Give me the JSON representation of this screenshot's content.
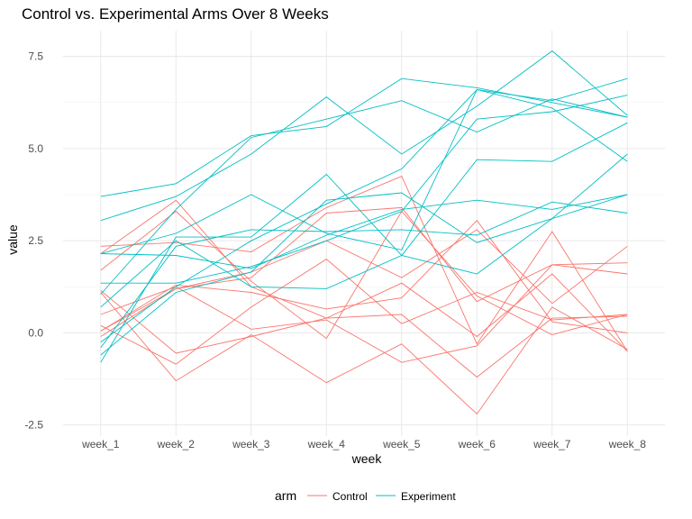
{
  "chart_data": {
    "type": "line",
    "title": "Control vs. Experimental Arms Over 8 Weeks",
    "xlabel": "week",
    "ylabel": "value",
    "categories": [
      "week_1",
      "week_2",
      "week_3",
      "week_4",
      "week_5",
      "week_6",
      "week_7",
      "week_8"
    ],
    "ylim": [
      -2.8,
      8.2
    ],
    "yticks": [
      -2.5,
      0.0,
      2.5,
      5.0,
      7.5
    ],
    "ytick_labels": [
      "-2.5",
      "0.0",
      "2.5",
      "5.0",
      "7.5"
    ],
    "grid": true,
    "legend": {
      "title": "arm",
      "position": "bottom",
      "entries": [
        {
          "name": "Control",
          "color": "#F8766D"
        },
        {
          "name": "Experiment",
          "color": "#00BFC4"
        }
      ]
    },
    "series": [
      {
        "name": "Control",
        "values": [
          0.2,
          -0.85,
          0.7,
          2.0,
          0.25,
          1.1,
          0.35,
          0.5
        ]
      },
      {
        "name": "Control",
        "values": [
          2.35,
          2.45,
          2.2,
          3.4,
          4.25,
          -0.3,
          2.75,
          -0.5
        ]
      },
      {
        "name": "Control",
        "values": [
          2.15,
          3.6,
          1.25,
          0.4,
          0.5,
          -1.2,
          0.4,
          0.45
        ]
      },
      {
        "name": "Control",
        "values": [
          1.1,
          -1.3,
          -0.05,
          -1.35,
          -0.3,
          -2.2,
          0.7,
          -0.45
        ]
      },
      {
        "name": "Control",
        "values": [
          1.7,
          3.3,
          1.4,
          -0.15,
          3.3,
          1.0,
          -0.05,
          0.5
        ]
      },
      {
        "name": "Control",
        "values": [
          1.15,
          -0.55,
          -0.1,
          0.4,
          1.35,
          -0.1,
          1.6,
          -0.5
        ]
      },
      {
        "name": "Control",
        "values": [
          -0.1,
          1.2,
          1.65,
          2.5,
          1.5,
          2.8,
          0.8,
          2.35
        ]
      },
      {
        "name": "Control",
        "values": [
          0.5,
          1.25,
          0.1,
          0.35,
          -0.8,
          -0.35,
          1.85,
          1.9
        ]
      },
      {
        "name": "Control",
        "values": [
          0.05,
          1.2,
          1.5,
          3.25,
          3.4,
          0.85,
          1.85,
          1.6
        ]
      },
      {
        "name": "Control",
        "values": [
          0.05,
          1.3,
          1.1,
          0.65,
          0.95,
          3.05,
          0.3,
          0.0
        ]
      },
      {
        "name": "Experiment",
        "values": [
          3.7,
          4.05,
          5.35,
          5.6,
          6.9,
          6.65,
          6.25,
          5.85
        ]
      },
      {
        "name": "Experiment",
        "values": [
          3.05,
          3.7,
          4.85,
          6.4,
          4.85,
          6.15,
          7.65,
          5.9
        ]
      },
      {
        "name": "Experiment",
        "values": [
          2.15,
          2.7,
          3.75,
          2.7,
          2.25,
          6.6,
          6.3,
          6.9
        ]
      },
      {
        "name": "Experiment",
        "values": [
          2.15,
          2.1,
          1.75,
          2.65,
          3.35,
          3.6,
          3.35,
          3.75
        ]
      },
      {
        "name": "Experiment",
        "values": [
          1.05,
          3.35,
          5.3,
          5.8,
          6.3,
          5.45,
          6.35,
          5.85
        ]
      },
      {
        "name": "Experiment",
        "values": [
          1.35,
          1.35,
          1.8,
          2.5,
          3.3,
          5.8,
          6.0,
          6.45
        ]
      },
      {
        "name": "Experiment",
        "values": [
          0.7,
          2.5,
          1.25,
          1.2,
          2.1,
          1.6,
          3.1,
          3.75
        ]
      },
      {
        "name": "Experiment",
        "values": [
          -0.4,
          2.35,
          2.8,
          2.75,
          2.8,
          2.65,
          3.55,
          3.25
        ]
      },
      {
        "name": "Experiment",
        "values": [
          -0.8,
          2.6,
          2.6,
          4.3,
          2.1,
          4.7,
          4.65,
          5.7
        ]
      },
      {
        "name": "Experiment",
        "values": [
          -0.6,
          1.1,
          1.65,
          3.6,
          3.8,
          2.45,
          3.1,
          4.85
        ]
      },
      {
        "name": "Experiment",
        "values": [
          -0.25,
          1.25,
          2.5,
          3.5,
          4.45,
          6.6,
          6.1,
          4.65
        ]
      }
    ]
  }
}
